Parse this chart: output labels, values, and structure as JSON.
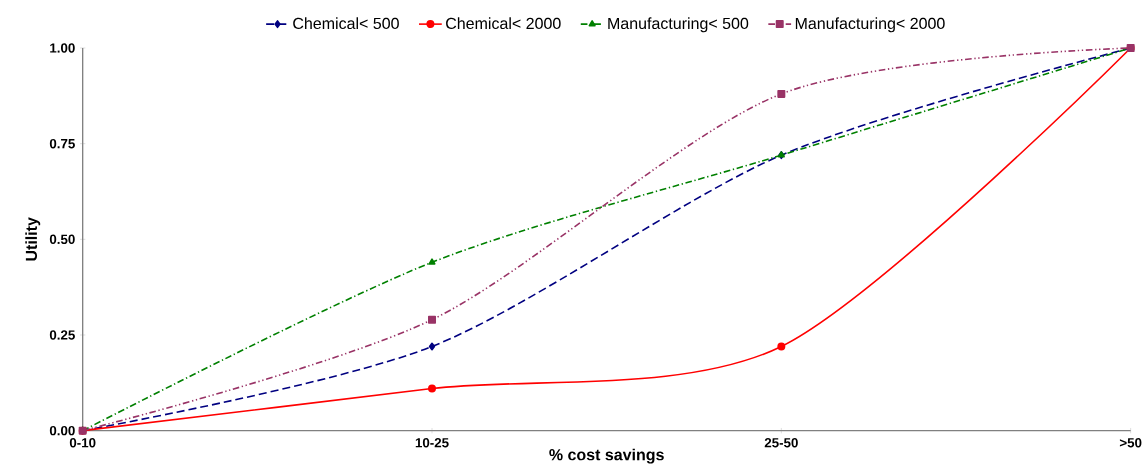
{
  "chart_data": {
    "type": "line",
    "xlabel": "% cost savings",
    "ylabel": "Utility",
    "categories": [
      "0-10",
      "10-25",
      "25-50",
      ">50"
    ],
    "ylim": [
      0,
      1
    ],
    "yticks": [
      {
        "value": 0,
        "label": "0.00"
      },
      {
        "value": 0.25,
        "label": "0.25"
      },
      {
        "value": 0.5,
        "label": "0.50"
      },
      {
        "value": 0.75,
        "label": "0.75"
      },
      {
        "value": 1,
        "label": "1.00"
      }
    ],
    "series": [
      {
        "name": "Chemical< 500",
        "color": "#000080",
        "values": [
          0,
          0.22,
          0.72,
          1
        ],
        "marker": "diamond",
        "line_style": "dashed"
      },
      {
        "name": "Chemical< 2000",
        "color": "#ff0000",
        "values": [
          0,
          0.11,
          0.22,
          1
        ],
        "marker": "circle",
        "line_style": "solid"
      },
      {
        "name": "Manufacturing< 500",
        "color": "#008000",
        "values": [
          0,
          0.44,
          0.72,
          1
        ],
        "marker": "triangle",
        "line_style": "dashdot"
      },
      {
        "name": "Manufacturing< 2000",
        "color": "#993366",
        "values": [
          0,
          0.29,
          0.88,
          1
        ],
        "marker": "square",
        "line_style": "dashdotdot"
      }
    ],
    "grid": false,
    "legend": "top"
  }
}
